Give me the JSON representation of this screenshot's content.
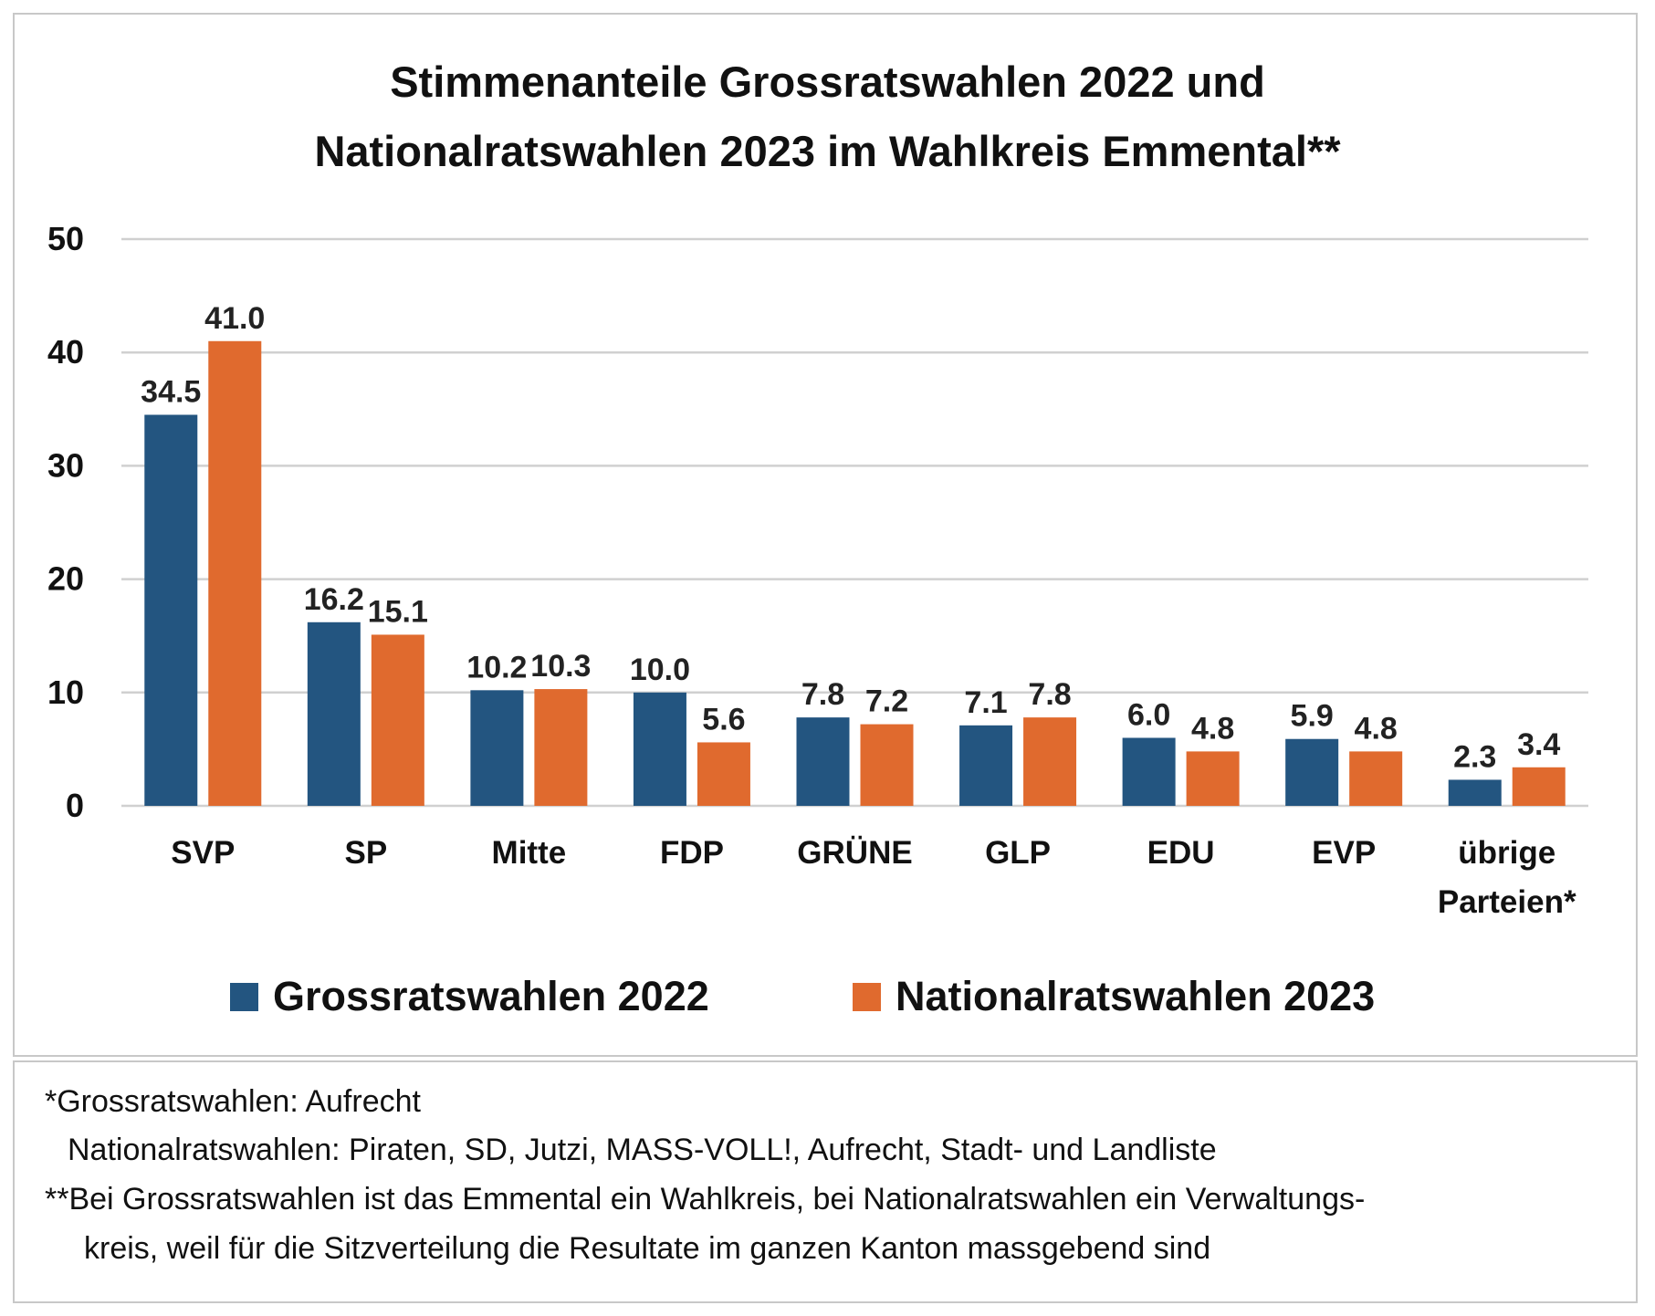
{
  "chart_data": {
    "type": "bar",
    "title": [
      "Stimmenanteile Grossratswahlen 2022 und",
      "Nationalratswahlen 2023 im Wahlkreis Emmental**"
    ],
    "categories": [
      [
        "SVP"
      ],
      [
        "SP"
      ],
      [
        "Mitte"
      ],
      [
        "FDP"
      ],
      [
        "GRÜNE"
      ],
      [
        "GLP"
      ],
      [
        "EDU"
      ],
      [
        "EVP"
      ],
      [
        "übrige",
        "Parteien*"
      ]
    ],
    "series": [
      {
        "name": "Grossratswahlen 2022",
        "color": "#235580",
        "values": [
          34.5,
          16.2,
          10.2,
          10.0,
          7.8,
          7.1,
          6.0,
          5.9,
          2.3
        ]
      },
      {
        "name": "Nationalratswahlen 2023",
        "color": "#e06a2e",
        "values": [
          41.0,
          15.1,
          10.3,
          5.6,
          7.2,
          7.8,
          4.8,
          4.8,
          3.4
        ]
      }
    ],
    "ylim": [
      0,
      50
    ],
    "yticks": [
      0,
      10,
      20,
      30,
      40,
      50
    ],
    "grid": true,
    "legend": "bottom"
  },
  "footnotes": [
    "*Grossratswahlen: Aufrecht",
    "Nationalratswahlen: Piraten, SD, Jutzi, MASS-VOLL!, Aufrecht, Stadt- und Landliste",
    "**Bei Grossratswahlen ist das Emmental ein Wahlkreis, bei Nationalratswahlen ein Verwaltungs-",
    "kreis, weil für die Sitzverteilung die Resultate im ganzen Kanton massgebend sind"
  ]
}
